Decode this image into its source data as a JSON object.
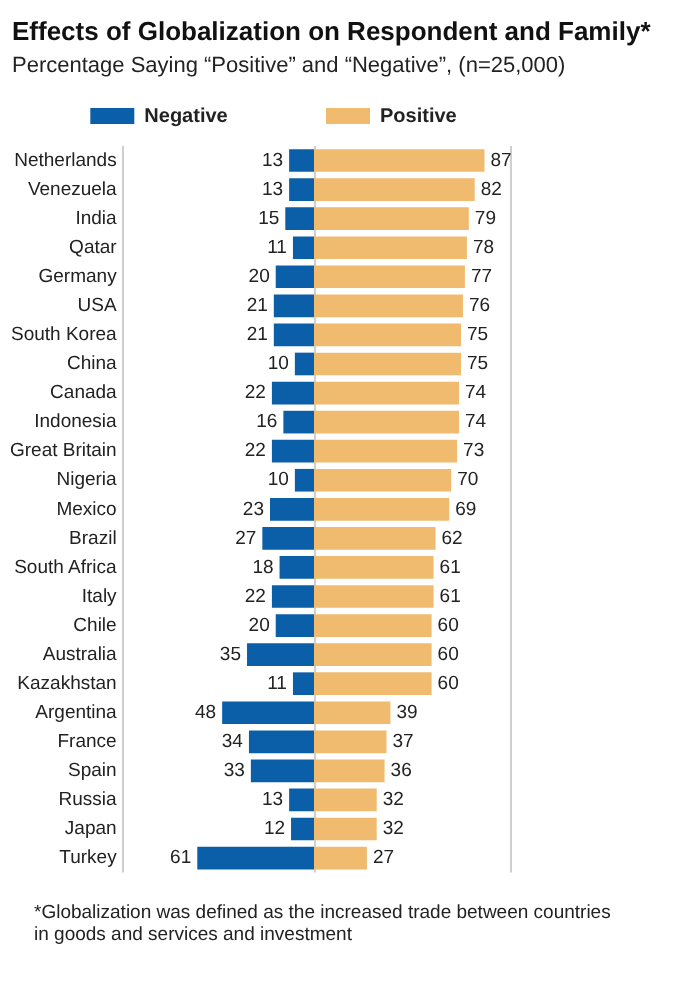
{
  "chart_data": [
    {
      "type": "bar",
      "orientation": "horizontal",
      "title": "Effects of Globalization on Respondent and Family*",
      "subtitle": "Percentage Saying “Positive” and “Negative”, (n=25,000)",
      "categories": [
        "Netherlands",
        "Venezuela",
        "India",
        "Qatar",
        "Germany",
        "USA",
        "South Korea",
        "China",
        "Canada",
        "Indonesia",
        "Great Britain",
        "Nigeria",
        "Mexico",
        "Brazil",
        "South Africa",
        "Italy",
        "Chile",
        "Australia",
        "Kazakhstan",
        "Argentina",
        "France",
        "Spain",
        "Russia",
        "Japan",
        "Turkey"
      ],
      "series": [
        {
          "name": "Negative",
          "color": "#0a5fa8",
          "values": [
            13,
            13,
            15,
            11,
            20,
            21,
            21,
            10,
            22,
            16,
            22,
            10,
            23,
            27,
            18,
            22,
            20,
            35,
            11,
            48,
            34,
            33,
            13,
            12,
            61
          ]
        }
      ],
      "xlim": [
        100,
        0
      ],
      "data_labels": true,
      "tick_labels": "y",
      "legend": "top",
      "annotations": [
        "*Globalization was defined as the increased trade between countries in goods and services and investment"
      ]
    },
    {
      "type": "bar",
      "orientation": "horizontal",
      "categories": [
        null,
        null,
        null,
        null,
        null,
        null,
        null,
        null,
        null,
        null,
        null,
        null,
        null,
        null,
        null,
        null,
        null,
        null,
        null,
        null,
        null,
        null,
        null,
        null,
        null
      ],
      "series": [
        {
          "name": "Positive",
          "color": "#f0bb6e",
          "values": [
            87,
            82,
            79,
            78,
            77,
            76,
            75,
            75,
            74,
            74,
            73,
            70,
            69,
            62,
            61,
            61,
            60,
            60,
            60,
            39,
            37,
            36,
            32,
            32,
            27
          ]
        }
      ],
      "xlim": [
        0,
        100
      ],
      "data_labels": true,
      "tick_labels": false,
      "legend": "top left"
    }
  ]
}
